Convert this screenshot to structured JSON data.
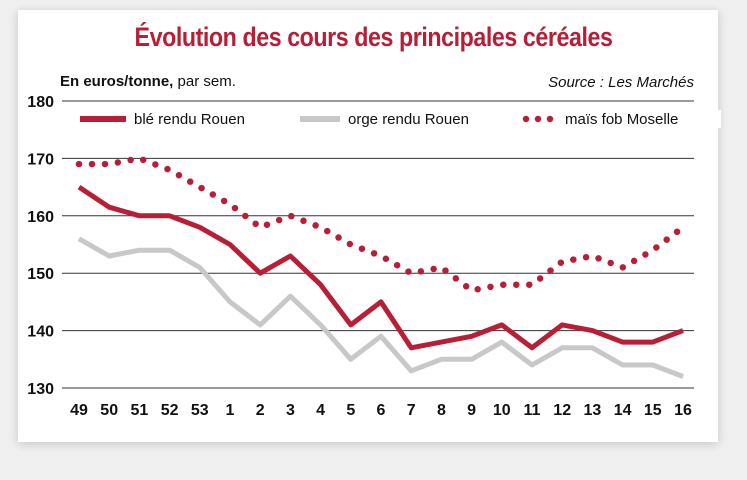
{
  "chart_data": {
    "type": "line",
    "title": "Évolution des cours des principales céréales",
    "unit_bold": "En euros/tonne,",
    "unit_rest": " par sem.",
    "source": "Source : Les Marchés",
    "categories": [
      "49",
      "50",
      "51",
      "52",
      "53",
      "1",
      "2",
      "3",
      "4",
      "5",
      "6",
      "7",
      "8",
      "9",
      "10",
      "11",
      "12",
      "13",
      "14",
      "15",
      "16"
    ],
    "ylim": [
      130,
      180
    ],
    "yticks": [
      130,
      140,
      150,
      160,
      170,
      180
    ],
    "grid": true,
    "legend_position": "top",
    "series": [
      {
        "name": "blé rendu Rouen",
        "color": "#b81e36",
        "style": "solid",
        "values": [
          165,
          161.5,
          160,
          160,
          158,
          155,
          150,
          153,
          148,
          141,
          145,
          137,
          138,
          139,
          141,
          137,
          141,
          140,
          138,
          138,
          140
        ]
      },
      {
        "name": "orge rendu Rouen",
        "color": "#c8c8c8",
        "style": "solid",
        "values": [
          156,
          153,
          154,
          154,
          151,
          145,
          141,
          146,
          141,
          135,
          139,
          133,
          135,
          135,
          138,
          134,
          137,
          137,
          134,
          134,
          132
        ]
      },
      {
        "name": "maïs fob Moselle",
        "color": "#b81e36",
        "style": "dotted",
        "values": [
          169,
          169,
          170,
          168,
          165,
          162,
          158,
          160,
          158,
          155,
          153,
          150,
          151,
          147,
          148,
          148,
          152,
          153,
          151,
          154,
          158
        ]
      }
    ]
  }
}
